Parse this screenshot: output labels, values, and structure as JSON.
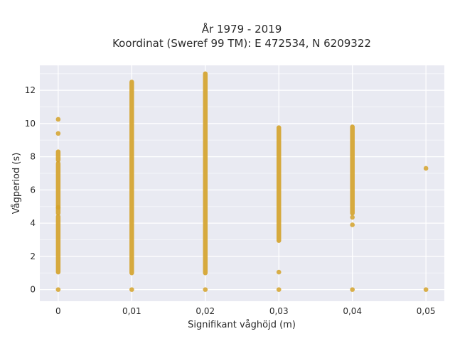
{
  "chart_data": {
    "type": "scatter",
    "title_lines": [
      "År 1979 - 2019",
      "Koordinat (Sweref 99 TM): E 472534, N 6209322"
    ],
    "xlabel": "Signifikant våghöjd (m)",
    "ylabel": "Vågperiod (s)",
    "xlim": [
      -0.0025,
      0.0525
    ],
    "ylim": [
      -0.7,
      13.5
    ],
    "x_ticks": [
      0,
      0.01,
      0.02,
      0.03,
      0.04,
      0.05
    ],
    "x_tick_labels": [
      "0",
      "0,01",
      "0,02",
      "0,03",
      "0,04",
      "0,05"
    ],
    "y_ticks": [
      0,
      2,
      4,
      6,
      8,
      10,
      12
    ],
    "y_tick_labels": [
      "0",
      "2",
      "4",
      "6",
      "8",
      "10",
      "12"
    ],
    "grid": true,
    "marker_color": "#d4a22a",
    "plot_background": "#e9eaf2",
    "columns": [
      {
        "x": 0,
        "ranges": [
          [
            1.05,
            4.4
          ],
          [
            4.6,
            7.6
          ],
          [
            7.8,
            8.3
          ]
        ],
        "points": [
          0,
          4.95,
          9.4,
          10.25
        ]
      },
      {
        "x": 0.01,
        "ranges": [
          [
            1.0,
            12.5
          ]
        ],
        "points": [
          0
        ]
      },
      {
        "x": 0.02,
        "ranges": [
          [
            1.0,
            13.0
          ]
        ],
        "points": [
          0
        ]
      },
      {
        "x": 0.03,
        "ranges": [
          [
            2.95,
            9.75
          ]
        ],
        "points": [
          0,
          1.05
        ]
      },
      {
        "x": 0.04,
        "ranges": [
          [
            4.6,
            9.8
          ]
        ],
        "points": [
          0,
          3.9,
          4.35
        ]
      },
      {
        "x": 0.05,
        "ranges": [],
        "points": [
          0,
          7.3
        ]
      }
    ]
  }
}
